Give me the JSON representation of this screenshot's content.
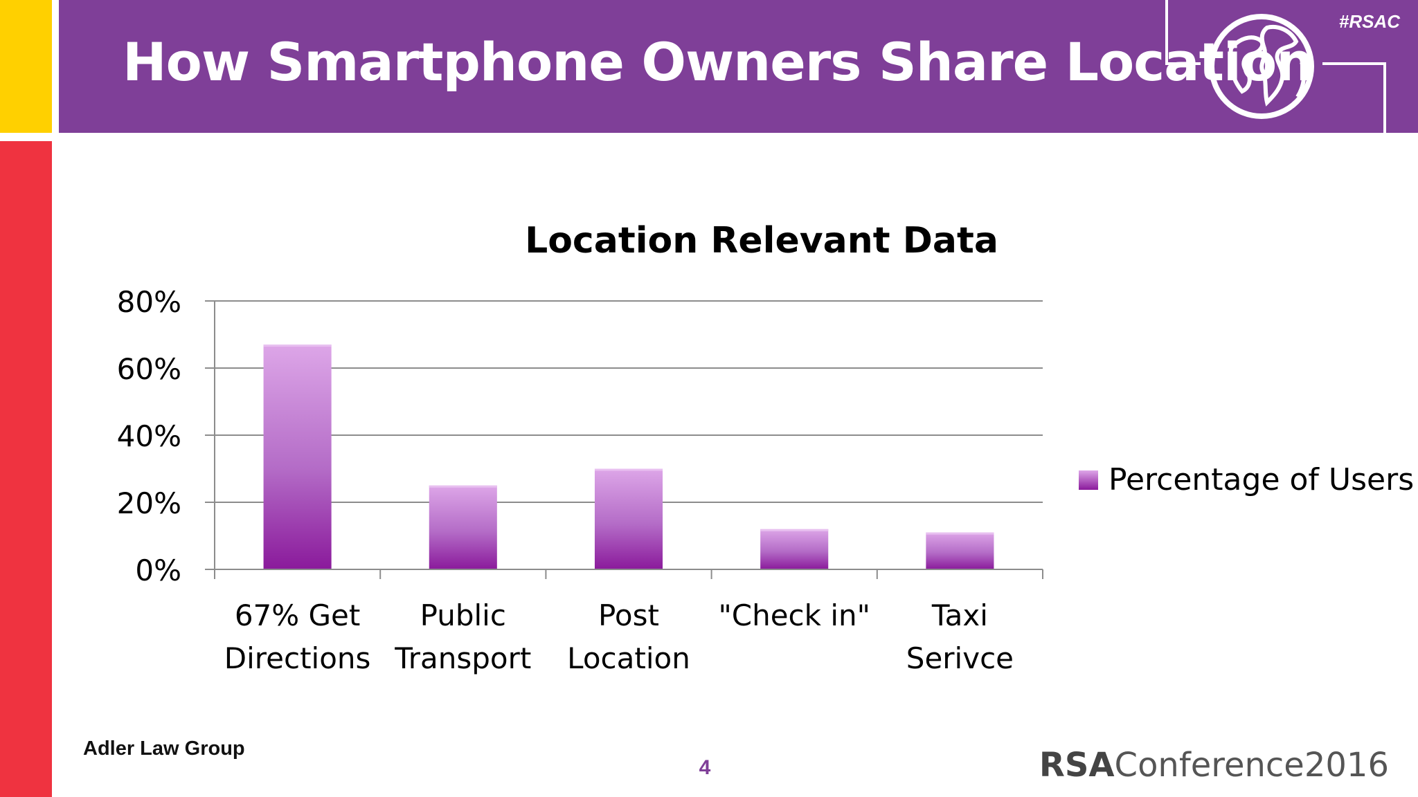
{
  "header": {
    "title": "How Smartphone Owners Share Location",
    "hashtag": "#RSAC",
    "globe_icon": "globe-icon"
  },
  "colors": {
    "header_purple": "#7F3F98",
    "accent_yellow": "#FFD000",
    "accent_red": "#EF3340",
    "bar_top": "#DDA6E8",
    "bar_bottom": "#8A1A9B",
    "grid": "#8c8c8c"
  },
  "chart_data": {
    "type": "bar",
    "title": "Location Relevant Data",
    "categories": [
      [
        "67% Get",
        "Directions"
      ],
      [
        "Public",
        "Transport"
      ],
      [
        "Post",
        "Location"
      ],
      [
        "\"Check in\""
      ],
      [
        "Taxi",
        "Serivce"
      ]
    ],
    "series": [
      {
        "name": "Percentage of Users",
        "values": [
          0.67,
          0.25,
          0.3,
          0.12,
          0.11
        ]
      }
    ],
    "ylim": [
      0,
      0.8
    ],
    "yticks": [
      {
        "value": 0,
        "label": "0%"
      },
      {
        "value": 0.2,
        "label": "20%"
      },
      {
        "value": 0.4,
        "label": "40%"
      },
      {
        "value": 0.6,
        "label": "60%"
      },
      {
        "value": 0.8,
        "label": "80%"
      }
    ],
    "grid": true,
    "legend": "right"
  },
  "footer": {
    "left": "Adler Law Group",
    "page": "4",
    "brand_rsa": "RSA",
    "brand_rest": "Conference2016"
  }
}
